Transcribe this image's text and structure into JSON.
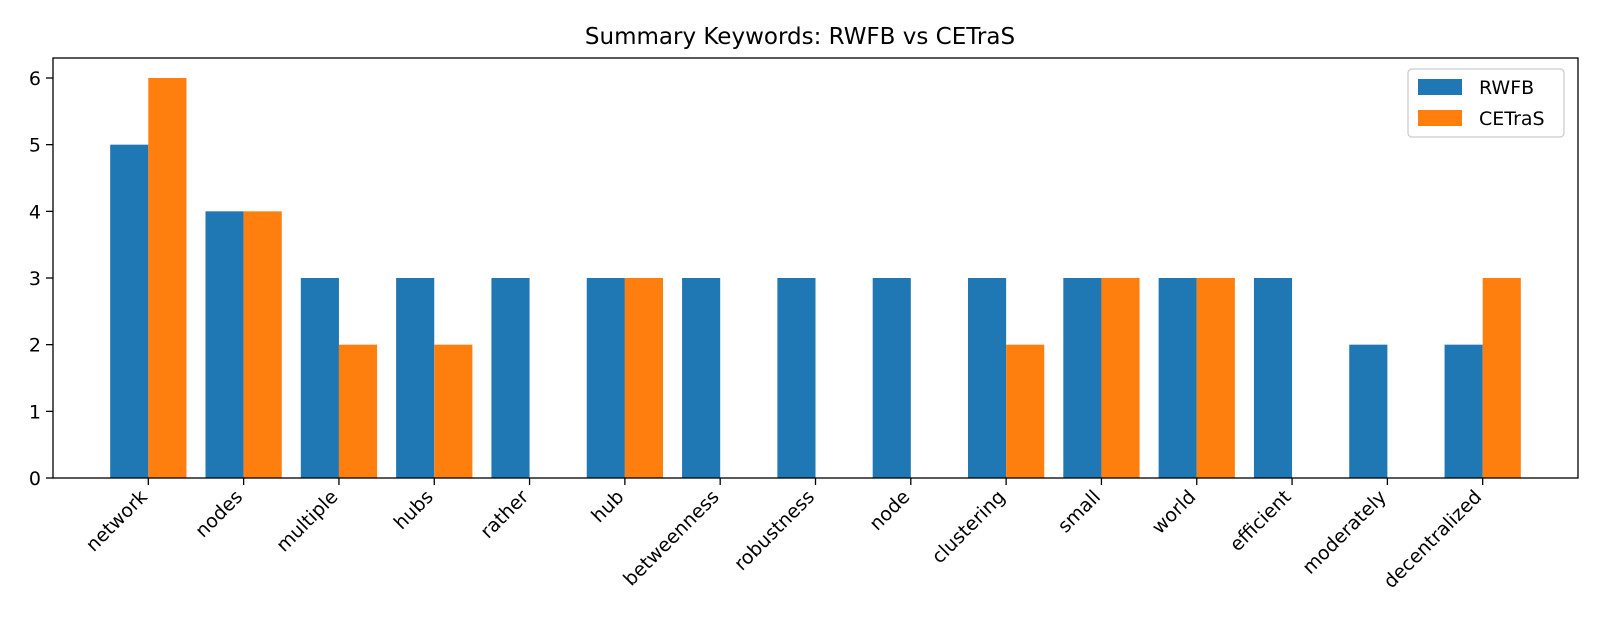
{
  "chart_data": {
    "type": "bar",
    "title": "Summary Keywords: RWFB vs CETraS",
    "xlabel": "",
    "ylabel": "",
    "categories": [
      "network",
      "nodes",
      "multiple",
      "hubs",
      "rather",
      "hub",
      "betweenness",
      "robustness",
      "node",
      "clustering",
      "small",
      "world",
      "efficient",
      "moderately",
      "decentralized"
    ],
    "series": [
      {
        "name": "RWFB",
        "color": "#1f77b4",
        "values": [
          5,
          4,
          3,
          3,
          3,
          3,
          3,
          3,
          3,
          3,
          3,
          3,
          3,
          2,
          2
        ]
      },
      {
        "name": "CETraS",
        "color": "#ff7f0e",
        "values": [
          6,
          4,
          2,
          2,
          0,
          3,
          0,
          0,
          0,
          2,
          3,
          3,
          0,
          0,
          3
        ]
      }
    ],
    "ylim": [
      0,
      6.3
    ],
    "yticks": [
      0,
      1,
      2,
      3,
      4,
      5,
      6
    ],
    "grid": false,
    "legend_position": "top-right"
  }
}
